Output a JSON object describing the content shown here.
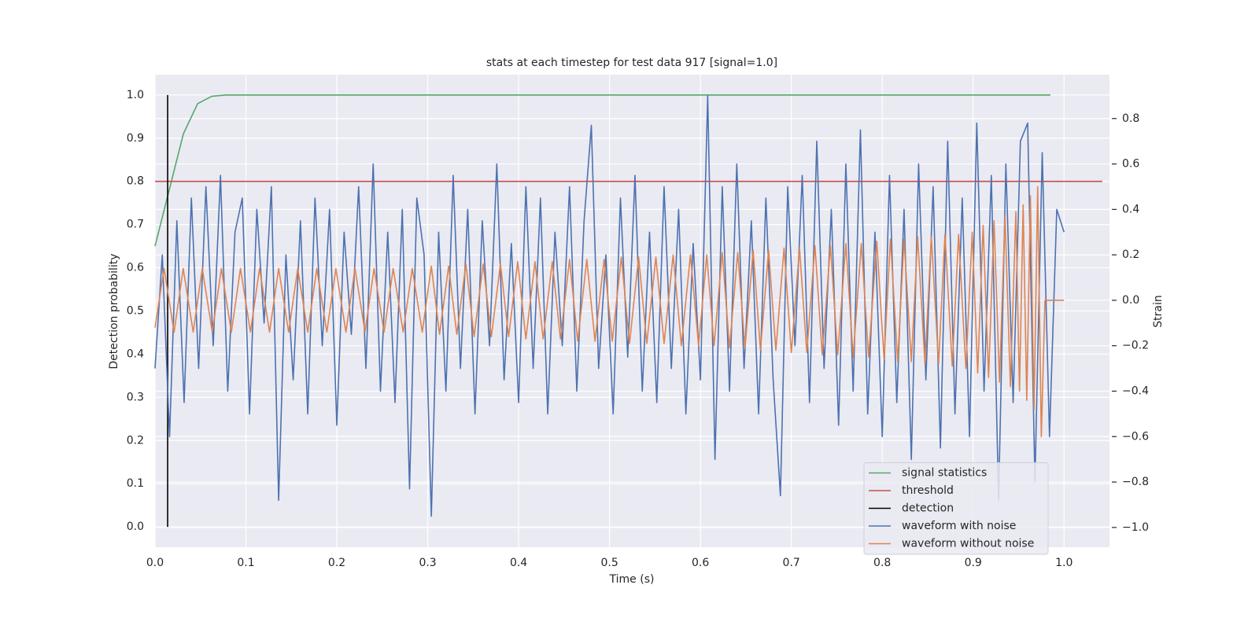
{
  "chart_data": {
    "type": "line",
    "title": "stats at each timestep for test data 917 [signal=1.0]",
    "x_label": "Time (s)",
    "y_label": "Detection probability",
    "y2_label": "Strain",
    "xlim": [
      0,
      1.05
    ],
    "ylim": [
      -0.047,
      1.047
    ],
    "y2lim": [
      -1.087,
      0.993
    ],
    "xticks": [
      {
        "value": 0,
        "label": "0.0"
      },
      0.1,
      0.2,
      0.3,
      0.4,
      0.5,
      0.6,
      0.7,
      0.8,
      0.9,
      {
        "value": 1,
        "label": "1.0"
      }
    ],
    "yticks": [
      {
        "value": 0,
        "label": "0.0"
      },
      0.1,
      0.2,
      0.3,
      0.4,
      0.5,
      0.6,
      0.7,
      0.8,
      0.9,
      {
        "value": 1,
        "label": "1.0"
      }
    ],
    "y2ticks": [
      {
        "value": -1,
        "label": "−1.0"
      },
      {
        "value": -0.8,
        "label": "−0.8"
      },
      {
        "value": -0.6,
        "label": "−0.6"
      },
      {
        "value": -0.4,
        "label": "−0.4"
      },
      {
        "value": -0.2,
        "label": "−0.2"
      },
      {
        "value": 0,
        "label": "0.0"
      },
      0.2,
      0.4,
      0.6,
      0.8
    ],
    "grid": true,
    "legend": "lower right",
    "series": [
      {
        "name": "signal statistics",
        "color": "#55a868",
        "axis": "y",
        "x": [
          0,
          0.0156,
          0.0312,
          0.0469,
          0.0625,
          0.0781,
          0.985
        ],
        "values": [
          0.65,
          0.78,
          0.91,
          0.98,
          0.997,
          1.0,
          1.0
        ]
      },
      {
        "name": "threshold",
        "color": "#c44e52",
        "axis": "y",
        "x": [
          0,
          1.042
        ],
        "values": [
          0.8,
          0.8
        ]
      },
      {
        "name": "detection",
        "color": "#000000",
        "axis": "y",
        "x": [
          0.0139,
          0.0139
        ],
        "values": [
          0,
          1
        ]
      },
      {
        "name": "waveform with noise",
        "color": "#4c72b0",
        "axis": "y2",
        "x": [
          0,
          0.008,
          0.016,
          0.024,
          0.032,
          0.04,
          0.048,
          0.056,
          0.064,
          0.072,
          0.08,
          0.088,
          0.096,
          0.104,
          0.112,
          0.12,
          0.128,
          0.136,
          0.144,
          0.152,
          0.16,
          0.168,
          0.176,
          0.184,
          0.192,
          0.2,
          0.208,
          0.216,
          0.224,
          0.232,
          0.24,
          0.248,
          0.256,
          0.264,
          0.272,
          0.28,
          0.288,
          0.296,
          0.304,
          0.312,
          0.32,
          0.328,
          0.336,
          0.344,
          0.352,
          0.36,
          0.368,
          0.376,
          0.384,
          0.392,
          0.4,
          0.408,
          0.416,
          0.424,
          0.432,
          0.44,
          0.448,
          0.456,
          0.464,
          0.472,
          0.48,
          0.488,
          0.496,
          0.504,
          0.512,
          0.52,
          0.528,
          0.536,
          0.544,
          0.552,
          0.56,
          0.568,
          0.576,
          0.584,
          0.592,
          0.6,
          0.608,
          0.616,
          0.624,
          0.632,
          0.64,
          0.648,
          0.656,
          0.664,
          0.672,
          0.68,
          0.688,
          0.696,
          0.704,
          0.712,
          0.72,
          0.728,
          0.736,
          0.744,
          0.752,
          0.76,
          0.768,
          0.776,
          0.784,
          0.792,
          0.8,
          0.808,
          0.816,
          0.824,
          0.832,
          0.84,
          0.848,
          0.856,
          0.864,
          0.872,
          0.88,
          0.888,
          0.896,
          0.904,
          0.912,
          0.92,
          0.928,
          0.936,
          0.944,
          0.952,
          0.96,
          0.968,
          0.976,
          0.984,
          0.992,
          1.0
        ],
        "values": [
          -0.3,
          0.2,
          -0.6,
          0.35,
          -0.45,
          0.45,
          -0.3,
          0.5,
          -0.2,
          0.55,
          -0.4,
          0.3,
          0.45,
          -0.5,
          0.4,
          -0.1,
          0.5,
          -0.88,
          0.2,
          -0.35,
          0.35,
          -0.5,
          0.45,
          -0.2,
          0.4,
          -0.55,
          0.3,
          -0.15,
          0.5,
          -0.3,
          0.6,
          -0.4,
          0.3,
          -0.45,
          0.4,
          -0.83,
          0.45,
          0.2,
          -0.95,
          0.3,
          -0.4,
          0.55,
          -0.3,
          0.4,
          -0.5,
          0.35,
          -0.2,
          0.6,
          -0.35,
          0.25,
          -0.45,
          0.5,
          -0.3,
          0.45,
          -0.5,
          0.3,
          -0.2,
          0.5,
          -0.4,
          0.35,
          0.77,
          -0.3,
          0.2,
          -0.5,
          0.45,
          -0.25,
          0.55,
          -0.4,
          0.3,
          -0.45,
          0.5,
          -0.3,
          0.4,
          -0.5,
          0.25,
          -0.35,
          0.9,
          -0.7,
          0.5,
          -0.4,
          0.6,
          -0.3,
          0.35,
          -0.5,
          0.45,
          -0.35,
          -0.86,
          0.5,
          -0.2,
          0.55,
          -0.45,
          0.7,
          -0.3,
          0.4,
          -0.55,
          0.6,
          -0.4,
          0.75,
          -0.5,
          0.3,
          -0.6,
          0.55,
          -0.45,
          0.4,
          -0.7,
          0.6,
          -0.35,
          0.5,
          -0.65,
          0.7,
          -0.5,
          0.45,
          -0.6,
          0.78,
          -0.4,
          0.55,
          -0.88,
          0.6,
          -0.45,
          0.7,
          0.78,
          -0.8,
          0.65,
          -0.6,
          0.4,
          0.3
        ]
      },
      {
        "name": "waveform without noise",
        "color": "#dd8452",
        "axis": "y2",
        "x": [
          0,
          0.01,
          0.021,
          0.031,
          0.042,
          0.052,
          0.063,
          0.073,
          0.084,
          0.094,
          0.105,
          0.115,
          0.126,
          0.136,
          0.147,
          0.157,
          0.168,
          0.178,
          0.189,
          0.199,
          0.21,
          0.22,
          0.231,
          0.241,
          0.252,
          0.262,
          0.273,
          0.283,
          0.294,
          0.304,
          0.313,
          0.323,
          0.332,
          0.342,
          0.351,
          0.361,
          0.37,
          0.38,
          0.389,
          0.399,
          0.408,
          0.418,
          0.427,
          0.437,
          0.446,
          0.456,
          0.465,
          0.475,
          0.484,
          0.494,
          0.503,
          0.513,
          0.522,
          0.532,
          0.541,
          0.551,
          0.56,
          0.57,
          0.579,
          0.589,
          0.598,
          0.607,
          0.615,
          0.624,
          0.632,
          0.641,
          0.649,
          0.658,
          0.666,
          0.675,
          0.683,
          0.692,
          0.7,
          0.709,
          0.717,
          0.726,
          0.734,
          0.743,
          0.751,
          0.76,
          0.768,
          0.777,
          0.785,
          0.794,
          0.802,
          0.809,
          0.817,
          0.824,
          0.832,
          0.839,
          0.847,
          0.854,
          0.862,
          0.869,
          0.877,
          0.884,
          0.892,
          0.899,
          0.905,
          0.911,
          0.917,
          0.923,
          0.929,
          0.935,
          0.941,
          0.947,
          0.951,
          0.955,
          0.959,
          0.963,
          0.967,
          0.971,
          0.975,
          0.979,
          1.0
        ],
        "values": [
          -0.12,
          0.14,
          -0.14,
          0.14,
          -0.14,
          0.14,
          -0.14,
          0.14,
          -0.14,
          0.14,
          -0.14,
          0.14,
          -0.14,
          0.14,
          -0.14,
          0.14,
          -0.14,
          0.14,
          -0.14,
          0.14,
          -0.14,
          0.14,
          -0.14,
          0.14,
          -0.14,
          0.14,
          -0.14,
          0.14,
          -0.14,
          0.15,
          -0.15,
          0.15,
          -0.15,
          0.16,
          -0.16,
          0.16,
          -0.16,
          0.16,
          -0.16,
          0.17,
          -0.17,
          0.17,
          -0.17,
          0.17,
          -0.17,
          0.18,
          -0.18,
          0.18,
          -0.18,
          0.18,
          -0.18,
          0.19,
          -0.19,
          0.19,
          -0.19,
          0.19,
          -0.19,
          0.2,
          -0.2,
          0.2,
          -0.2,
          0.2,
          -0.2,
          0.21,
          -0.21,
          0.21,
          -0.21,
          0.22,
          -0.22,
          0.22,
          -0.22,
          0.23,
          -0.23,
          0.23,
          -0.23,
          0.24,
          -0.24,
          0.24,
          -0.24,
          0.25,
          -0.25,
          0.25,
          -0.25,
          0.26,
          -0.26,
          0.27,
          -0.27,
          0.27,
          -0.27,
          0.28,
          -0.28,
          0.28,
          -0.28,
          0.29,
          -0.29,
          0.29,
          -0.3,
          0.3,
          -0.32,
          0.33,
          -0.34,
          0.35,
          -0.36,
          0.37,
          -0.38,
          0.39,
          -0.4,
          0.42,
          -0.44,
          0.46,
          -0.48,
          0.5,
          -0.6,
          0,
          0
        ]
      }
    ]
  }
}
